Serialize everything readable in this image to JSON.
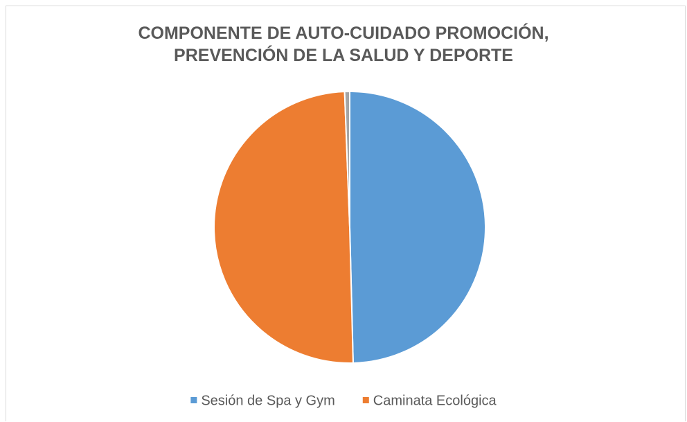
{
  "chart_data": {
    "type": "pie",
    "title": "COMPONENTE DE AUTO-CUIDADO PROMOCIÓN, PREVENCIÓN DE LA SALUD Y DEPORTE",
    "categories": [
      "Sesión de Spa y Gym",
      "Caminata Ecológica",
      null
    ],
    "values": [
      49.6,
      49.8,
      0.6
    ],
    "colors": [
      "#5b9bd5",
      "#ed7d31",
      "#a5a5a5"
    ],
    "legend": "bottom"
  }
}
